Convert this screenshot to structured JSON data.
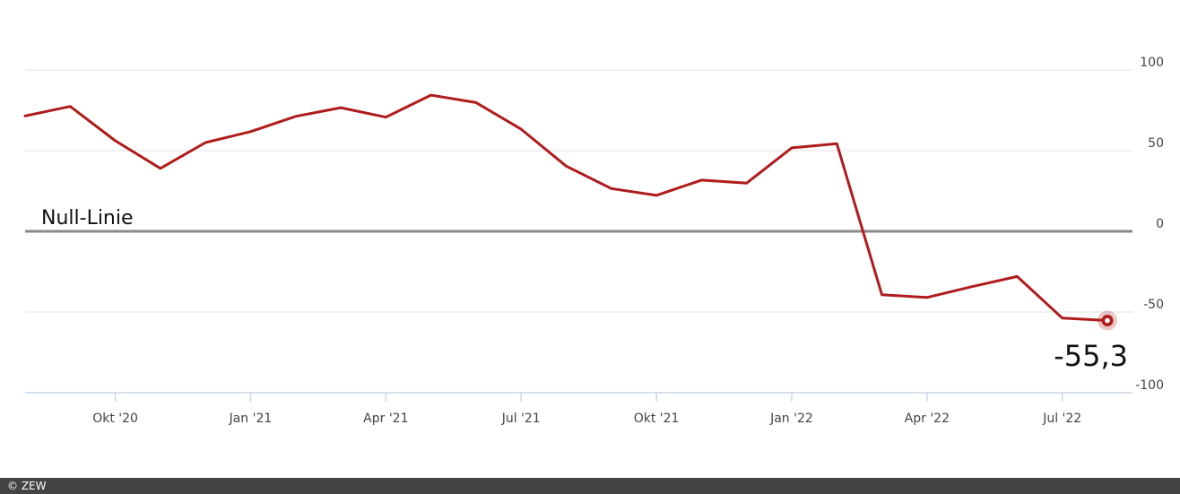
{
  "chart_data": {
    "type": "line",
    "x": [
      "2020-08",
      "2020-09",
      "2020-10",
      "2020-11",
      "2020-12",
      "2021-01",
      "2021-02",
      "2021-03",
      "2021-04",
      "2021-05",
      "2021-06",
      "2021-07",
      "2021-08",
      "2021-09",
      "2021-10",
      "2021-11",
      "2021-12",
      "2022-01",
      "2022-02",
      "2022-03",
      "2022-04",
      "2022-05",
      "2022-06",
      "2022-07",
      "2022-08"
    ],
    "series": [
      {
        "values": [
          71.5,
          77.4,
          56.1,
          39.0,
          55.0,
          61.8,
          71.2,
          76.6,
          70.7,
          84.4,
          79.8,
          63.3,
          40.4,
          26.5,
          22.3,
          31.7,
          29.9,
          51.7,
          54.3,
          -39.3,
          -41.0,
          -34.3,
          -28.0,
          -53.8,
          -55.3
        ]
      }
    ],
    "ylim": [
      -100,
      100
    ],
    "yticks": [
      {
        "value": 100,
        "label": "100"
      },
      {
        "value": 50,
        "label": "50"
      },
      {
        "value": 0,
        "label": "0"
      },
      {
        "value": -50,
        "label": "-50"
      },
      {
        "value": -100,
        "label": "-100"
      }
    ],
    "xticks": [
      {
        "x": "2020-10",
        "label": "Okt '20"
      },
      {
        "x": "2021-01",
        "label": "Jan '21"
      },
      {
        "x": "2021-04",
        "label": "Apr '21"
      },
      {
        "x": "2021-07",
        "label": "Jul '21"
      },
      {
        "x": "2021-10",
        "label": "Okt '21"
      },
      {
        "x": "2022-01",
        "label": "Jan '22"
      },
      {
        "x": "2022-04",
        "label": "Apr '22"
      },
      {
        "x": "2022-07",
        "label": "Jul '22"
      }
    ],
    "zero_line_label": "Null-Linie",
    "last_value_label": "-55,3",
    "grid": true,
    "colors": {
      "line": "#b01c1c",
      "zero": "#8a8a8a",
      "grid": "#e2e2e2",
      "axis": "#c9d6ea"
    }
  },
  "footer": {
    "credit": "© ZEW"
  }
}
